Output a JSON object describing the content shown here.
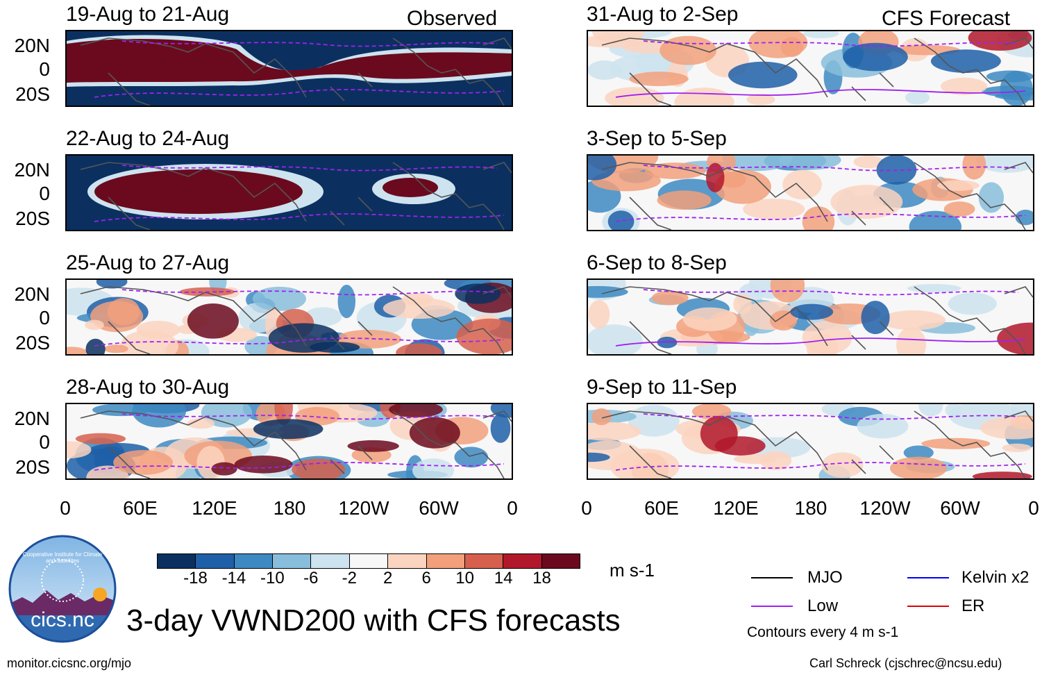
{
  "chart_data": {
    "type": "heatmap",
    "title": "3-day VWND200 with CFS forecasts",
    "units": "m s-1",
    "headers": {
      "observed": "Observed",
      "forecast": "CFS Forecast"
    },
    "lat_ticks": [
      "20N",
      "0",
      "20S"
    ],
    "lon_ticks": [
      "0",
      "60E",
      "120E",
      "180",
      "120W",
      "60W",
      "0"
    ],
    "panels": [
      {
        "id": "obs-1",
        "column": "observed",
        "title": "19-Aug to 21-Aug",
        "pattern": "strong-positive-band"
      },
      {
        "id": "obs-2",
        "column": "observed",
        "title": "22-Aug to 24-Aug",
        "pattern": "positive-indian-ocean"
      },
      {
        "id": "obs-3",
        "column": "observed",
        "title": "25-Aug to 27-Aug",
        "pattern": "mixed"
      },
      {
        "id": "obs-4",
        "column": "observed",
        "title": "28-Aug to 30-Aug",
        "pattern": "mixed"
      },
      {
        "id": "fc-1",
        "column": "forecast",
        "title": "31-Aug to 2-Sep",
        "pattern": "weak"
      },
      {
        "id": "fc-2",
        "column": "forecast",
        "title": "3-Sep to 5-Sep",
        "pattern": "weak"
      },
      {
        "id": "fc-3",
        "column": "forecast",
        "title": "6-Sep to 8-Sep",
        "pattern": "weak"
      },
      {
        "id": "fc-4",
        "column": "forecast",
        "title": "9-Sep to 11-Sep",
        "pattern": "weak"
      }
    ],
    "colorbar": {
      "ticks": [
        "-18",
        "-14",
        "-10",
        "-6",
        "-2",
        "2",
        "6",
        "10",
        "14",
        "18"
      ],
      "colors": [
        "#0b3060",
        "#1f5fa8",
        "#3d8ac2",
        "#88bedc",
        "#cde3ef",
        "#f7f7f7",
        "#fbd4c0",
        "#f2a07c",
        "#d6604d",
        "#b2182b",
        "#6b0a1e"
      ]
    },
    "legend": [
      {
        "label": "MJO",
        "color": "#000000"
      },
      {
        "label": "Low",
        "color": "#a020f0"
      },
      {
        "label": "Kelvin x2",
        "color": "#0000ff"
      },
      {
        "label": "ER",
        "color": "#e00000"
      }
    ],
    "contour_note": "Contours every 4 m s-1"
  },
  "branding": {
    "logo_text": "cics.nc",
    "logo_ring_text": "Cooperative Institute for Climate and Satellites"
  },
  "footer": {
    "left": "monitor.cicsnc.org/mjo",
    "right": "Carl Schreck (cjschrec@ncsu.edu)"
  }
}
